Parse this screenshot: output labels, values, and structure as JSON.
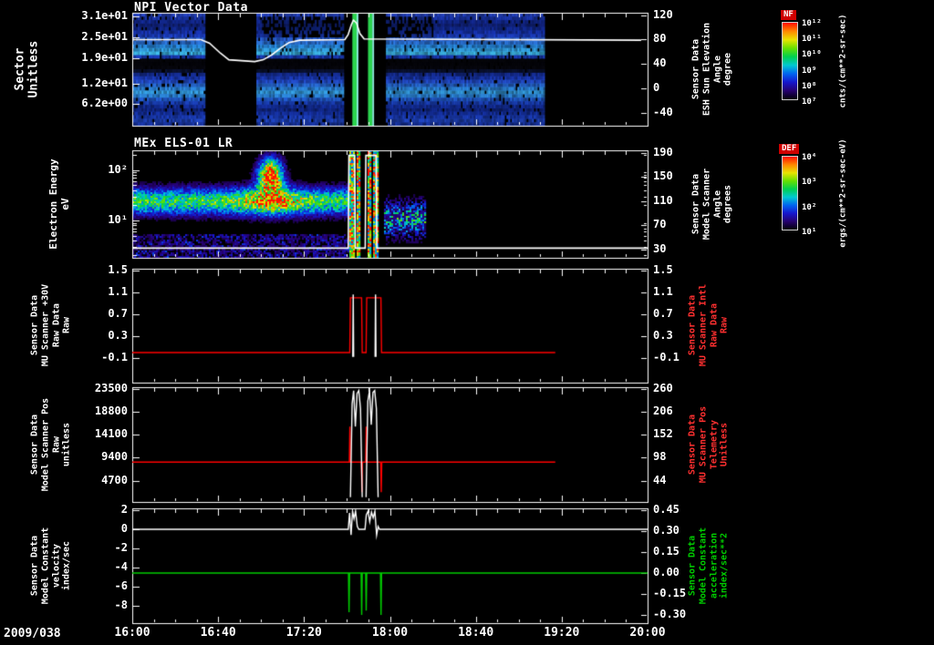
{
  "page": {
    "bg": "#000000",
    "date_label": "2009/038"
  },
  "x_axis": {
    "tick_labels": [
      "16:00",
      "16:40",
      "17:20",
      "18:00",
      "18:40",
      "19:20",
      "20:00"
    ],
    "tick_minutes": [
      0,
      40,
      80,
      120,
      160,
      200,
      240
    ],
    "minor_step_min": 10,
    "range_min": [
      0,
      240
    ]
  },
  "colormap_stops": [
    "#000008",
    "#26006e",
    "#1616cc",
    "#0064f0",
    "#00c8d2",
    "#00d050",
    "#66e000",
    "#e8e400",
    "#ff8800",
    "#ff1000"
  ],
  "colorbars": [
    {
      "name": "NF",
      "tick_labels": [
        "10¹²",
        "10¹¹",
        "10¹⁰",
        "10⁹",
        "10⁸",
        "10⁷"
      ],
      "unit_label": "cnts/(cm**2-sr-sec)"
    },
    {
      "name": "DEF",
      "tick_labels": [
        "10⁴",
        "10³",
        "10²",
        "10¹"
      ],
      "unit_label": "ergs/(cm**2-sr-sec-eV)"
    }
  ],
  "chart_data": [
    {
      "type": "heatmap",
      "title": "NPI Vector Data",
      "left_label": "Sector\nUnitless",
      "left_ticks": [
        "3.1e+01",
        "2.5e+01",
        "1.9e+01",
        "1.2e+01",
        "6.2e+00"
      ],
      "left_tick_values": [
        31,
        25,
        19,
        12,
        6.2
      ],
      "left_range": [
        0,
        32
      ],
      "right_label": "Sensor Data\nESH Sun Elevation\nAngle\ndegree",
      "right_ticks": [
        "120",
        "80",
        "40",
        "0",
        "-40"
      ],
      "right_tick_values": [
        120,
        80,
        40,
        0,
        -40
      ],
      "right_range": [
        -61,
        124
      ],
      "row_colors": [
        "#2747cf",
        "#1d3ab8",
        "#142c9c",
        "#122586",
        "#142ea0",
        "#1937bd",
        "#1e42d0",
        "#2a64de",
        "#2f7ce9",
        "#2b92ec",
        "#36abf1",
        "#41c1f3",
        "#1c40c6",
        "#06060c",
        "#05050b",
        "#07070f",
        "#0b1335",
        "#1731a1",
        "#1c3dc2",
        "#2551d6",
        "#2b71e3",
        "#3090ed",
        "#39a9f1",
        "#3090e9",
        "#2462d9",
        "#1c44c1",
        "#1633aa",
        "#122b94",
        "#1735af",
        "#1d41c6",
        "#2249cd",
        "#1b3ab2"
      ],
      "data_end_min": 192,
      "gap_min": [
        34,
        57
      ],
      "dark_patch": {
        "t0": 60,
        "t1": 140,
        "row0": 1,
        "row1": 6
      },
      "pulse_region": {
        "t0": 98.5,
        "t1": 118,
        "stripes": [
          {
            "t0": 102.5,
            "t1": 104.5,
            "color": "#2bd44e"
          },
          {
            "t0": 104.5,
            "t1": 105.3,
            "color": "#8ef0e0"
          },
          {
            "t0": 109.8,
            "t1": 111.8,
            "color": "#2bd44e"
          },
          {
            "t0": 111.8,
            "t1": 112.6,
            "color": "#8ef0e0"
          }
        ]
      },
      "white_line": {
        "name": "esh_sun_elevation_deg",
        "points": [
          [
            0,
            80
          ],
          [
            32,
            80
          ],
          [
            36,
            74
          ],
          [
            41,
            58
          ],
          [
            45,
            47
          ],
          [
            57,
            44
          ],
          [
            61,
            47
          ],
          [
            65,
            55
          ],
          [
            69,
            66
          ],
          [
            73,
            75
          ],
          [
            78,
            79
          ],
          [
            99,
            80
          ],
          [
            100.5,
            88
          ],
          [
            102,
            104
          ],
          [
            103,
            112
          ],
          [
            104.5,
            107
          ],
          [
            106,
            90
          ],
          [
            108,
            81
          ],
          [
            237,
            79
          ]
        ]
      }
    },
    {
      "type": "heatmap",
      "title": "MEx ELS-01 LR",
      "left_label": "Electron Energy\neV",
      "left_ticks": [
        "10²",
        "10¹"
      ],
      "left_tick_values": [
        100,
        10
      ],
      "left_log_range": [
        1.8,
        250
      ],
      "log_minor_ticks": [
        2,
        3,
        4,
        5,
        6,
        7,
        8,
        9,
        20,
        30,
        40,
        50,
        60,
        70,
        80,
        90,
        200
      ],
      "right_label": "Sensor Data\nModel Scanner\nAngle\ndegrees",
      "right_ticks": [
        "190",
        "150",
        "110",
        "70",
        "30"
      ],
      "right_tick_values": [
        190,
        150,
        110,
        70,
        30
      ],
      "right_range": [
        16,
        194.5
      ],
      "features": {
        "band_t1": 100.5,
        "band_E": 25,
        "band_sig": 0.26,
        "band_I": 0.55,
        "blob_t": 64,
        "blob_tsig": 5.5,
        "blob_E": 80,
        "blob_sig": 0.32,
        "blob_I": 1.05,
        "pulse_t0": 100.5,
        "pulse_t1": 117,
        "stripes": [
          [
            101,
            103.4
          ],
          [
            104.2,
            105.6
          ],
          [
            108.8,
            111
          ],
          [
            112,
            114.2
          ]
        ],
        "post_E": 11,
        "post_sig": 0.33,
        "post_I": 0.55,
        "end_min": 136
      },
      "white_line": {
        "name": "model_scanner_angle_deg",
        "points": [
          [
            0,
            32
          ],
          [
            100.6,
            32
          ],
          [
            100.9,
            186
          ],
          [
            103.6,
            186
          ],
          [
            103.9,
            32
          ],
          [
            108.5,
            32
          ],
          [
            108.8,
            186
          ],
          [
            113.6,
            186
          ],
          [
            113.9,
            32
          ],
          [
            240,
            32
          ]
        ]
      }
    },
    {
      "type": "line",
      "left_label": "Sensor Data\nMU Scanner +30V\nRaw Data\nRaw",
      "left_ticks": [
        "1.5",
        "1.1",
        "0.7",
        "0.3",
        "-0.1"
      ],
      "left_tick_values": [
        1.5,
        1.1,
        0.7,
        0.3,
        -0.1
      ],
      "left_range": [
        -0.55,
        1.53
      ],
      "right_label": "Sensor Data\nMU Scanner Intl\nRaw Data\nRaw",
      "right_label_color": "#ff3030",
      "right_ticks": [
        "1.5",
        "1.1",
        "0.7",
        "0.3",
        "-0.1"
      ],
      "right_tick_values": [
        1.5,
        1.1,
        0.7,
        0.3,
        -0.1
      ],
      "right_range": [
        -0.55,
        1.53
      ],
      "series": [
        {
          "name": "mu_scanner_p30v_raw",
          "color": "#ff0000",
          "axis": "left",
          "segments": [
            [
              [
                0,
                0
              ],
              [
                101.3,
                0
              ],
              [
                101.6,
                1.0
              ],
              [
                106.8,
                1.0
              ],
              [
                107.1,
                0
              ],
              [
                108.9,
                0
              ],
              [
                109.2,
                1.0
              ],
              [
                115.8,
                1.0
              ],
              [
                116.1,
                0
              ],
              [
                197,
                0
              ]
            ]
          ]
        },
        {
          "name": "mu_scanner_intl_raw",
          "color": "#ffffff",
          "axis": "left",
          "segments": [
            [
              [
                102.7,
                -0.08
              ],
              [
                102.9,
                1.06
              ],
              [
                103.1,
                -0.08
              ]
            ],
            [
              [
                113.1,
                -0.08
              ],
              [
                113.3,
                1.06
              ],
              [
                113.5,
                -0.08
              ]
            ]
          ]
        }
      ]
    },
    {
      "type": "line",
      "left_label": "Sensor Data\nModel Scanner Pos\nRaw\nunitless",
      "left_ticks": [
        "23500",
        "18800",
        "14100",
        "9400",
        "4700"
      ],
      "left_tick_values": [
        23500,
        18800,
        14100,
        9400,
        4700
      ],
      "left_range": [
        300,
        23900
      ],
      "right_label": "Sensor Data\nMU Scanner Pos\nTelemetry\nUnitless",
      "right_label_color": "#ff3030",
      "right_ticks": [
        "260",
        "206",
        "152",
        "98",
        "44"
      ],
      "right_tick_values": [
        260,
        206,
        152,
        98,
        44
      ],
      "right_range": [
        -6.2,
        264.3
      ],
      "series": [
        {
          "name": "model_scanner_pos_raw",
          "color": "#ff0000",
          "axis": "left",
          "segments": [
            [
              [
                0,
                8500
              ],
              [
                101.1,
                8500
              ],
              [
                101.35,
                15800
              ],
              [
                101.6,
                8500
              ],
              [
                106.7,
                8500
              ],
              [
                106.95,
                2300
              ],
              [
                107.2,
                8500
              ],
              [
                108.7,
                8500
              ],
              [
                108.95,
                15800
              ],
              [
                109.2,
                8500
              ],
              [
                115.7,
                8500
              ],
              [
                115.95,
                2300
              ],
              [
                116.2,
                8500
              ],
              [
                197,
                8500
              ]
            ]
          ]
        },
        {
          "name": "mu_scanner_pos_telemetry",
          "color": "#ffffff",
          "axis": "left",
          "segments": [
            [
              [
                101.6,
                1300
              ],
              [
                102.4,
                20500
              ],
              [
                103.1,
                23200
              ],
              [
                103.9,
                15800
              ],
              [
                104.7,
                22600
              ],
              [
                105.5,
                23200
              ],
              [
                106.3,
                19500
              ],
              [
                107.1,
                1300
              ]
            ],
            [
              [
                108.9,
                1300
              ],
              [
                109.7,
                21000
              ],
              [
                110.5,
                23200
              ],
              [
                111.3,
                16200
              ],
              [
                112.1,
                22800
              ],
              [
                112.9,
                23200
              ],
              [
                113.7,
                19500
              ],
              [
                114.5,
                1300
              ]
            ]
          ]
        }
      ]
    },
    {
      "type": "line",
      "left_label": "Sensor Data\nModel Constant\nvelocity\nindex/sec",
      "left_ticks": [
        "2",
        "0",
        "-2",
        "-4",
        "-6",
        "-8"
      ],
      "left_tick_values": [
        2,
        0,
        -2,
        -4,
        -6,
        -8
      ],
      "left_range": [
        -9.81,
        2.19
      ],
      "right_label": "Sensor Data\nModel Constant\nacceleration\nindex/sec**2",
      "right_label_color": "#00cc00",
      "right_ticks": [
        "0.45",
        "0.30",
        "0.15",
        "0.00",
        "-0.15",
        "-0.30"
      ],
      "right_tick_values": [
        0.45,
        0.3,
        0.15,
        0.0,
        -0.15,
        -0.3
      ],
      "right_range": [
        -0.359,
        0.463
      ],
      "series": [
        {
          "name": "model_constant_velocity",
          "color": "#ffffff",
          "axis": "left",
          "segments": [
            [
              [
                0,
                0
              ],
              [
                100.6,
                0
              ],
              [
                101.2,
                1.7
              ],
              [
                101.9,
                -0.6
              ],
              [
                102.6,
                1.9
              ],
              [
                103.3,
                1.1
              ],
              [
                104,
                1.9
              ],
              [
                104.8,
                0.3
              ],
              [
                105.5,
                0
              ],
              [
                108.4,
                0
              ],
              [
                109,
                1.5
              ],
              [
                109.8,
                1.9
              ],
              [
                110.6,
                0.8
              ],
              [
                111.4,
                1.8
              ],
              [
                112.2,
                1.2
              ],
              [
                113,
                1.9
              ],
              [
                113.8,
                -0.6
              ],
              [
                114.5,
                0.3
              ],
              [
                115.2,
                0
              ],
              [
                240,
                0
              ]
            ]
          ]
        },
        {
          "name": "model_constant_acceleration",
          "color": "#00cc00",
          "axis": "right",
          "segments": [
            [
              [
                0,
                0
              ],
              [
                100.7,
                0
              ],
              [
                100.95,
                -0.28
              ],
              [
                101.2,
                0
              ],
              [
                106.6,
                0
              ],
              [
                106.85,
                -0.3
              ],
              [
                107.1,
                0
              ],
              [
                108.7,
                0
              ],
              [
                108.95,
                -0.27
              ],
              [
                109.2,
                0
              ],
              [
                115.6,
                0
              ],
              [
                115.85,
                -0.3
              ],
              [
                116.1,
                0
              ],
              [
                240,
                0
              ]
            ]
          ]
        }
      ]
    }
  ]
}
